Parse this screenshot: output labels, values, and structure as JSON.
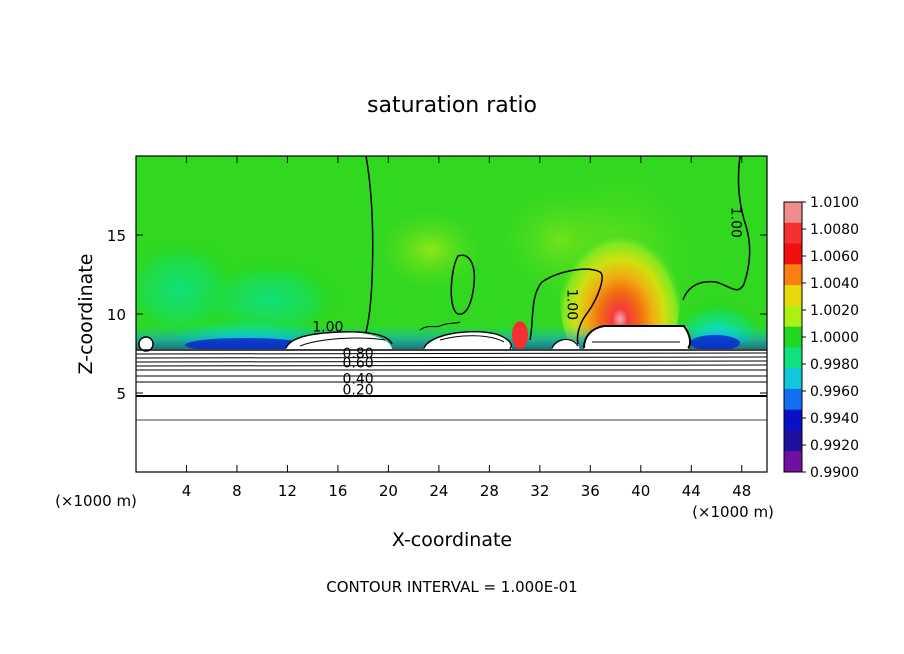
{
  "chart_data": {
    "type": "heatmap",
    "title": "saturation ratio",
    "xlabel": "X-coordinate",
    "ylabel": "Z-coordinate",
    "x_unit": "(×1000 m)",
    "x_unit_right": "(×1000 m)",
    "xlim": [
      0,
      50
    ],
    "ylim": [
      0,
      20
    ],
    "x_ticks": [
      4,
      8,
      12,
      16,
      20,
      24,
      28,
      32,
      36,
      40,
      44,
      48
    ],
    "y_ticks": [
      5,
      10,
      15
    ],
    "contour_interval_text": "CONTOUR INTERVAL = 1.000E-01",
    "contour_labels": [
      {
        "text": "1.00",
        "x": 15.2,
        "z": 8.9
      },
      {
        "text": "0.80",
        "x": 17.6,
        "z": 7.2
      },
      {
        "text": "0.60",
        "x": 17.6,
        "z": 6.6
      },
      {
        "text": "0.40",
        "x": 17.6,
        "z": 5.6
      },
      {
        "text": "0.20",
        "x": 17.6,
        "z": 4.9
      },
      {
        "text": "1.00",
        "x": 34.2,
        "z": 10.6
      },
      {
        "text": "1.00",
        "x": 47.2,
        "z": 15.8
      }
    ],
    "colorbar": {
      "levels": [
        "1.0100",
        "1.0080",
        "1.0060",
        "1.0040",
        "1.0020",
        "1.0000",
        "0.9980",
        "0.9960",
        "0.9940",
        "0.9920",
        "0.9900"
      ],
      "colors": [
        "#f08c8c",
        "#f43030",
        "#f01010",
        "#f88010",
        "#e8d80c",
        "#aef010",
        "#20d820",
        "#10e080",
        "#10c8d8",
        "#1070f0",
        "#0810c8",
        "#2010a0",
        "#7010a0"
      ]
    },
    "background_value": 1.0,
    "maximum": {
      "x": 39,
      "z": 10.5,
      "value": 1.008
    },
    "minima": [
      {
        "x": 9,
        "z": 8,
        "value": 0.994
      },
      {
        "x": 45,
        "z": 8.5,
        "value": 0.994
      }
    ]
  }
}
